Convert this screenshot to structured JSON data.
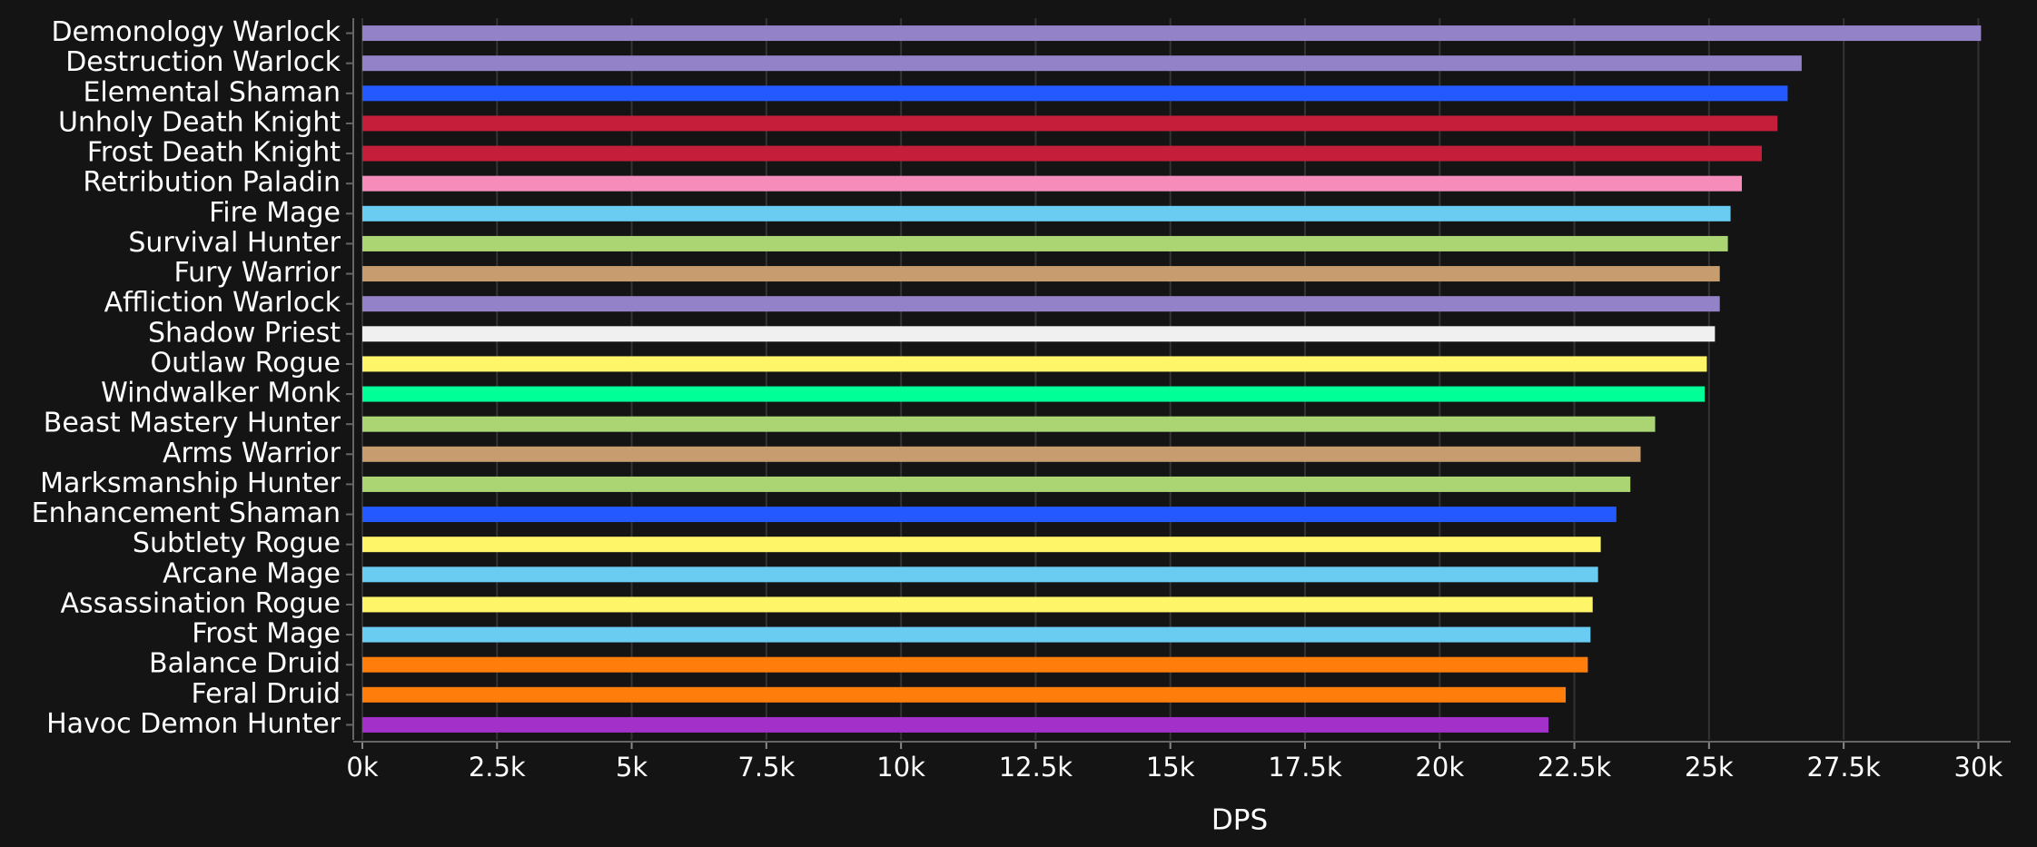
{
  "chart_data": {
    "type": "bar",
    "orientation": "horizontal",
    "x_label": "DPS",
    "categories": [
      "Demonology Warlock",
      "Destruction Warlock",
      "Elemental Shaman",
      "Unholy Death Knight",
      "Frost Death Knight",
      "Retribution Paladin",
      "Fire Mage",
      "Survival Hunter",
      "Fury Warrior",
      "Affliction Warlock",
      "Shadow Priest",
      "Outlaw Rogue",
      "Windwalker Monk",
      "Beast Mastery Hunter",
      "Arms Warrior",
      "Marksmanship Hunter",
      "Enhancement Shaman",
      "Subtlety Rogue",
      "Arcane Mage",
      "Assassination Rogue",
      "Frost Mage",
      "Balance Druid",
      "Feral Druid",
      "Havoc Demon Hunter"
    ],
    "values": [
      30050,
      26720,
      26460,
      26270,
      25980,
      25610,
      25400,
      25350,
      25200,
      25200,
      25110,
      24960,
      24920,
      24000,
      23730,
      23540,
      23280,
      22990,
      22940,
      22840,
      22800,
      22750,
      22340,
      22020
    ],
    "colors": [
      "#9482c9",
      "#9482c9",
      "#2459ff",
      "#c41e3a",
      "#c41e3a",
      "#f58cba",
      "#69ccf0",
      "#abd473",
      "#c79c6e",
      "#9482c9",
      "#f0f0f0",
      "#fff569",
      "#00ff96",
      "#abd473",
      "#c79c6e",
      "#abd473",
      "#2459ff",
      "#fff569",
      "#69ccf0",
      "#fff569",
      "#69ccf0",
      "#ff7d0a",
      "#ff7d0a",
      "#a330c9"
    ],
    "xlim": [
      0,
      30600
    ],
    "xticks": [
      {
        "value": 0,
        "label": "0k"
      },
      {
        "value": 2500,
        "label": "2.5k"
      },
      {
        "value": 5000,
        "label": "5k"
      },
      {
        "value": 7500,
        "label": "7.5k"
      },
      {
        "value": 10000,
        "label": "10k"
      },
      {
        "value": 12500,
        "label": "12.5k"
      },
      {
        "value": 15000,
        "label": "15k"
      },
      {
        "value": 17500,
        "label": "17.5k"
      },
      {
        "value": 20000,
        "label": "20k"
      },
      {
        "value": 22500,
        "label": "22.5k"
      },
      {
        "value": 25000,
        "label": "25k"
      },
      {
        "value": 27500,
        "label": "27.5k"
      },
      {
        "value": 30000,
        "label": "30k"
      }
    ],
    "grid": true
  }
}
